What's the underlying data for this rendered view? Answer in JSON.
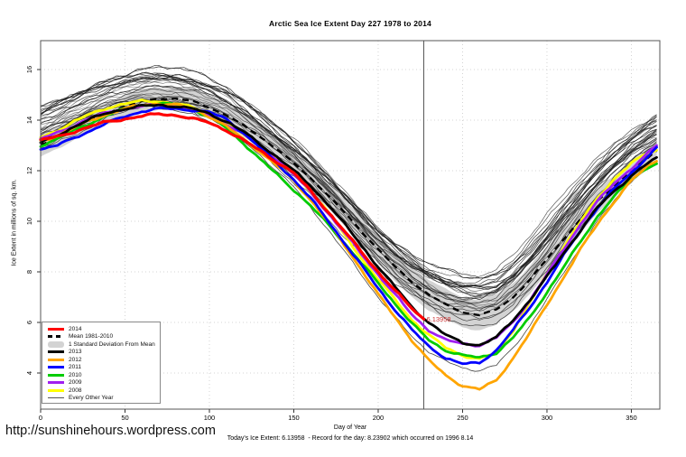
{
  "title": "Arctic Sea Ice Extent Day 227 1978 to 2014",
  "site_url": "http://sunshinehours.wordpress.com",
  "footer_note": "Today's Ice Extent: 6.13958  - Record for the day: 8.23902 which occurred on 1996 8.14",
  "annotation": {
    "text": "6.13958",
    "day": 227,
    "value": 6.13958,
    "color": "#cc3333"
  },
  "vline_day": 227,
  "colors": {
    "y2014": "#ff0000",
    "mean": "#000000",
    "band": "#d3d3d3",
    "y2013": "#000000",
    "y2012": "#ffa500",
    "y2011": "#0000ff",
    "y2010": "#00cc00",
    "y2009": "#a020f0",
    "y2008": "#ffff00",
    "other_year": "#1a1a1a",
    "grid": "#c9c9c9",
    "frame": "#555555"
  },
  "legend": {
    "items": [
      {
        "label": "2014",
        "swatch": "line",
        "color": "#ff0000"
      },
      {
        "label": "Mean 1981-2010",
        "swatch": "dashed",
        "color": "#000000"
      },
      {
        "label": "1 Standard Deviation From Mean",
        "swatch": "band",
        "color": "#d3d3d3"
      },
      {
        "label": "2013",
        "swatch": "line",
        "color": "#000000"
      },
      {
        "label": "2012",
        "swatch": "line",
        "color": "#ffa500"
      },
      {
        "label": "2011",
        "swatch": "line",
        "color": "#0000ff"
      },
      {
        "label": "2010",
        "swatch": "line",
        "color": "#00cc00"
      },
      {
        "label": "2009",
        "swatch": "line",
        "color": "#a020f0"
      },
      {
        "label": "2008",
        "swatch": "line",
        "color": "#ffff00"
      },
      {
        "label": "Every Other Year",
        "swatch": "thinline",
        "color": "#555555"
      }
    ]
  },
  "chart_data": {
    "type": "line",
    "title": "Arctic Sea Ice Extent Day 227 1978 to 2014",
    "xlabel": "Day of Year",
    "ylabel": "Ice Extent in millions of sq. km.",
    "x_ticks": [
      0,
      50,
      100,
      150,
      200,
      250,
      300,
      350
    ],
    "y_ticks": [
      4,
      6,
      8,
      10,
      12,
      14,
      16
    ],
    "xlim": [
      0,
      367
    ],
    "ylim": [
      2.6,
      17.1
    ],
    "grid": "dotted",
    "legend_position": "bottom-left",
    "days": [
      0,
      10,
      20,
      30,
      40,
      50,
      60,
      70,
      80,
      90,
      100,
      110,
      120,
      130,
      140,
      150,
      160,
      170,
      180,
      190,
      200,
      210,
      220,
      230,
      240,
      250,
      260,
      270,
      280,
      290,
      300,
      310,
      320,
      330,
      340,
      350,
      360,
      365
    ],
    "mean_1981_2010": [
      13.0,
      13.3,
      13.7,
      14.0,
      14.3,
      14.55,
      14.75,
      14.85,
      14.85,
      14.75,
      14.5,
      14.2,
      13.8,
      13.35,
      12.85,
      12.3,
      11.7,
      11.05,
      10.35,
      9.6,
      8.9,
      8.2,
      7.6,
      7.1,
      6.7,
      6.4,
      6.3,
      6.5,
      7.0,
      7.7,
      8.5,
      9.3,
      10.1,
      10.8,
      11.4,
      12.0,
      12.5,
      12.8
    ],
    "std_dev": [
      0.45,
      0.45,
      0.45,
      0.45,
      0.45,
      0.45,
      0.45,
      0.45,
      0.45,
      0.45,
      0.45,
      0.45,
      0.45,
      0.45,
      0.45,
      0.5,
      0.5,
      0.5,
      0.5,
      0.55,
      0.55,
      0.6,
      0.6,
      0.6,
      0.6,
      0.6,
      0.6,
      0.6,
      0.55,
      0.55,
      0.5,
      0.5,
      0.5,
      0.5,
      0.45,
      0.45,
      0.45,
      0.45
    ],
    "series": [
      {
        "name": "2008",
        "color": "#ffff00",
        "width": 2.8,
        "values": [
          13.3,
          13.6,
          13.95,
          14.25,
          14.5,
          14.65,
          14.75,
          14.75,
          14.65,
          14.5,
          14.25,
          13.9,
          13.45,
          12.95,
          12.45,
          11.9,
          11.2,
          10.4,
          9.45,
          8.55,
          7.7,
          6.9,
          6.1,
          5.5,
          5.0,
          4.7,
          4.55,
          4.8,
          5.7,
          6.8,
          7.9,
          9.0,
          10.0,
          10.9,
          11.7,
          12.3,
          12.7,
          12.8
        ]
      },
      {
        "name": "2010",
        "color": "#00cc00",
        "width": 2.8,
        "values": [
          13.0,
          13.25,
          13.6,
          13.9,
          14.2,
          14.45,
          14.6,
          14.65,
          14.6,
          14.45,
          14.1,
          13.7,
          13.1,
          12.45,
          11.85,
          11.25,
          10.6,
          9.9,
          9.15,
          8.35,
          7.55,
          6.75,
          5.95,
          5.3,
          4.9,
          4.7,
          4.6,
          4.8,
          5.4,
          6.2,
          7.2,
          8.2,
          9.2,
          10.2,
          11.0,
          11.65,
          12.15,
          12.3
        ]
      },
      {
        "name": "2009",
        "color": "#a020f0",
        "width": 2.8,
        "values": [
          13.25,
          13.5,
          13.8,
          14.1,
          14.3,
          14.45,
          14.55,
          14.6,
          14.55,
          14.4,
          14.2,
          13.85,
          13.45,
          12.95,
          12.45,
          11.85,
          11.15,
          10.35,
          9.55,
          8.7,
          7.9,
          7.1,
          6.3,
          5.7,
          5.3,
          5.15,
          5.1,
          5.4,
          6.0,
          6.9,
          7.9,
          8.9,
          9.9,
          10.8,
          11.5,
          12.1,
          12.7,
          13.0
        ]
      },
      {
        "name": "2012",
        "color": "#ffa500",
        "width": 2.8,
        "values": [
          13.15,
          13.4,
          13.7,
          14.0,
          14.25,
          14.45,
          14.6,
          14.65,
          14.6,
          14.45,
          14.15,
          13.75,
          13.25,
          12.75,
          12.2,
          11.6,
          10.85,
          10.0,
          9.05,
          8.1,
          7.1,
          6.2,
          5.3,
          4.5,
          3.9,
          3.5,
          3.35,
          3.7,
          4.6,
          5.6,
          6.7,
          7.8,
          8.9,
          9.9,
          10.8,
          11.6,
          12.2,
          12.4
        ]
      },
      {
        "name": "2011",
        "color": "#0000ff",
        "width": 2.8,
        "values": [
          12.85,
          13.0,
          13.3,
          13.6,
          13.9,
          14.15,
          14.35,
          14.45,
          14.45,
          14.4,
          14.3,
          14.05,
          13.5,
          12.9,
          12.3,
          11.65,
          10.9,
          10.05,
          9.15,
          8.25,
          7.35,
          6.5,
          5.7,
          5.05,
          4.6,
          4.35,
          4.4,
          4.9,
          5.7,
          6.6,
          7.6,
          8.65,
          9.65,
          10.55,
          11.3,
          11.9,
          12.6,
          12.9
        ]
      },
      {
        "name": "2013",
        "color": "#000000",
        "width": 2.8,
        "values": [
          13.1,
          13.4,
          13.75,
          14.05,
          14.3,
          14.45,
          14.55,
          14.6,
          14.55,
          14.45,
          14.25,
          13.95,
          13.55,
          13.05,
          12.55,
          12.0,
          11.4,
          10.7,
          9.9,
          9.05,
          8.2,
          7.4,
          6.6,
          6.0,
          5.5,
          5.2,
          5.1,
          5.4,
          6.1,
          6.9,
          7.8,
          8.75,
          9.65,
          10.55,
          11.2,
          11.8,
          12.3,
          12.5
        ]
      }
    ],
    "series_2014": {
      "name": "2014",
      "color": "#ff0000",
      "width": 3.2,
      "days": [
        0,
        10,
        20,
        30,
        40,
        50,
        60,
        70,
        80,
        90,
        100,
        110,
        120,
        130,
        140,
        150,
        160,
        170,
        180,
        190,
        200,
        210,
        220,
        227
      ],
      "values": [
        13.2,
        13.35,
        13.55,
        13.75,
        13.95,
        14.05,
        14.15,
        14.25,
        14.2,
        14.05,
        13.9,
        13.6,
        13.2,
        12.8,
        12.35,
        11.9,
        11.2,
        10.4,
        9.6,
        8.8,
        8.0,
        7.25,
        6.55,
        6.14
      ]
    },
    "background": {
      "label": "Every Other Year",
      "count": 32,
      "high_envelope": [
        14.3,
        14.6,
        14.9,
        15.2,
        15.45,
        15.65,
        15.8,
        15.85,
        15.8,
        15.65,
        15.4,
        15.1,
        14.65,
        14.15,
        13.6,
        13.05,
        12.45,
        11.8,
        11.1,
        10.4,
        9.7,
        9.1,
        8.6,
        8.2,
        7.9,
        7.7,
        7.65,
        7.8,
        8.3,
        9.0,
        9.8,
        10.65,
        11.45,
        12.2,
        12.85,
        13.4,
        13.85,
        14.05
      ],
      "low_envelope": [
        12.8,
        13.05,
        13.35,
        13.65,
        13.95,
        14.15,
        14.3,
        14.35,
        14.3,
        14.15,
        13.9,
        13.55,
        13.1,
        12.6,
        12.1,
        11.55,
        10.9,
        10.2,
        9.45,
        8.7,
        8.0,
        7.35,
        6.8,
        6.35,
        6.0,
        5.8,
        5.75,
        5.95,
        6.45,
        7.15,
        7.95,
        8.85,
        9.7,
        10.55,
        11.25,
        11.9,
        12.4,
        12.6
      ],
      "low_outlier": [
        13.3,
        13.6,
        13.9,
        14.15,
        14.35,
        14.5,
        14.55,
        14.5,
        14.4,
        14.2,
        13.95,
        13.6,
        13.15,
        12.6,
        12.0,
        11.35,
        10.55,
        9.7,
        8.8,
        7.9,
        7.0,
        6.2,
        5.45,
        4.85,
        4.45,
        4.2,
        4.1,
        4.3,
        5.0,
        5.9,
        6.9,
        8.0,
        9.0,
        10.0,
        10.85,
        11.6,
        12.3,
        12.55
      ]
    }
  }
}
